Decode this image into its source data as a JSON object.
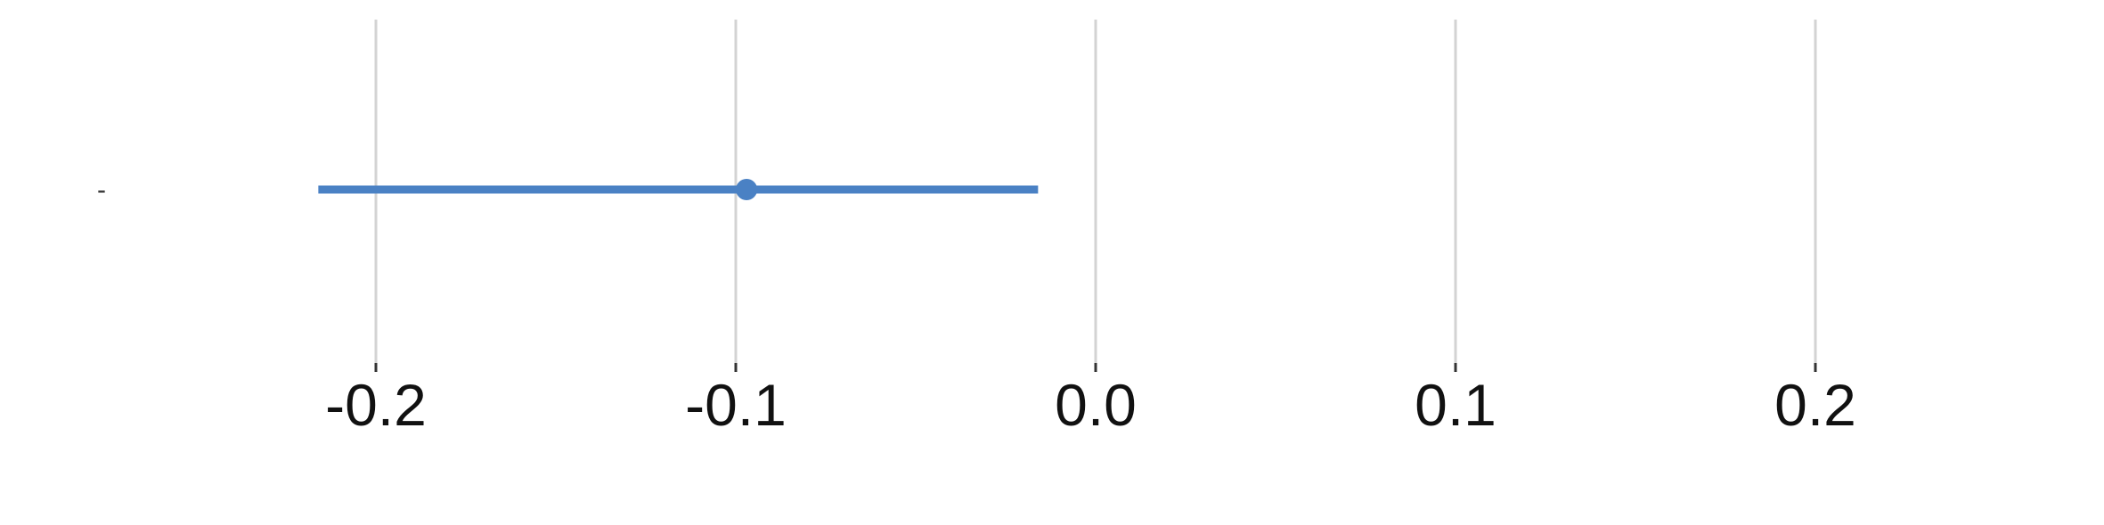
{
  "chart_data": {
    "type": "scatter",
    "subtype": "forest-plot",
    "xlim": [
      -0.2,
      0.2
    ],
    "x_ticks": [
      -0.2,
      -0.1,
      0.0,
      0.1,
      0.2
    ],
    "x_tick_labels": [
      "-0.2",
      "-0.1",
      "0.0",
      "0.1",
      "0.2"
    ],
    "grid": true,
    "rows": [
      {
        "label": "-",
        "estimate": -0.097,
        "ci_low": -0.216,
        "ci_high": -0.016
      }
    ],
    "colors": {
      "series": "#4a81c4",
      "grid": "#d3d3d3",
      "tick": "#333333",
      "text": "#111111"
    }
  }
}
